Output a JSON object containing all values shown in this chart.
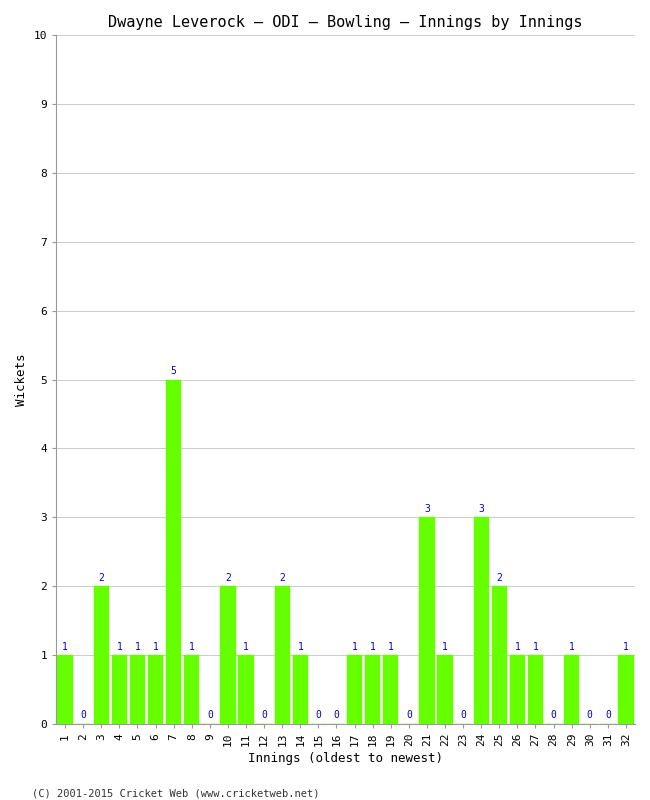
{
  "title": "Dwayne Leverock – ODI – Bowling – Innings by Innings",
  "xlabel": "Innings (oldest to newest)",
  "ylabel": "Wickets",
  "xlim": [
    0.5,
    32.5
  ],
  "ylim": [
    0,
    10
  ],
  "yticks": [
    0,
    1,
    2,
    3,
    4,
    5,
    6,
    7,
    8,
    9,
    10
  ],
  "innings": [
    1,
    2,
    3,
    4,
    5,
    6,
    7,
    8,
    9,
    10,
    11,
    12,
    13,
    14,
    15,
    16,
    17,
    18,
    19,
    20,
    21,
    22,
    23,
    24,
    25,
    26,
    27,
    28,
    29,
    30,
    31,
    32
  ],
  "wickets": [
    1,
    0,
    2,
    1,
    1,
    1,
    5,
    1,
    0,
    2,
    1,
    0,
    2,
    1,
    0,
    0,
    1,
    1,
    1,
    0,
    3,
    1,
    0,
    3,
    2,
    1,
    1,
    0,
    1,
    0,
    0,
    1
  ],
  "bar_color": "#66ff00",
  "bar_edgecolor": "#66ff00",
  "label_color": "#0000cc",
  "background_color": "#ffffff",
  "grid_color": "#cccccc",
  "footer": "(C) 2001-2015 Cricket Web (www.cricketweb.net)",
  "title_fontsize": 11,
  "xlabel_fontsize": 9,
  "ylabel_fontsize": 9,
  "tick_fontsize": 8,
  "annotation_fontsize": 7,
  "footer_fontsize": 7.5
}
